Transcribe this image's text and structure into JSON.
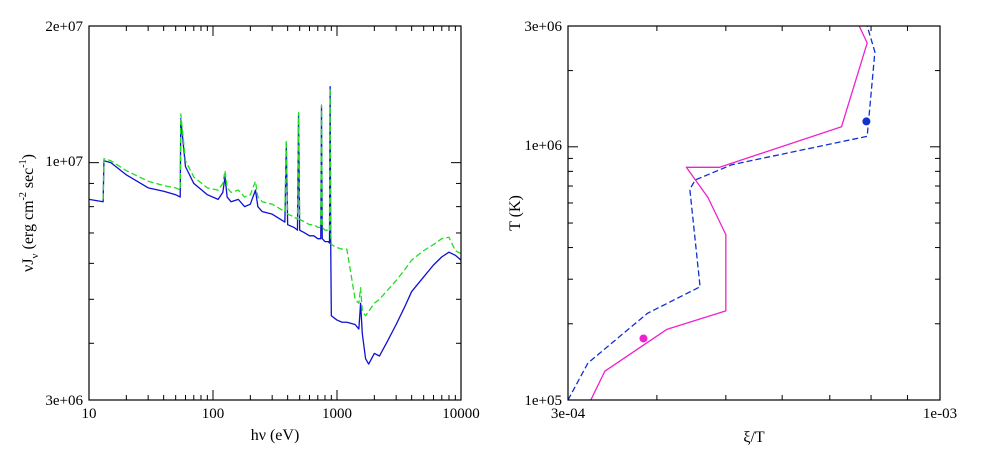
{
  "colors": {
    "solid": "#1010d0",
    "dashed": "#22dd22",
    "magenta": "#ee22cc",
    "blue_dashed": "#1030d0",
    "frame": "#000000"
  },
  "chart_data": [
    {
      "type": "line",
      "title": "",
      "xlabel": "hν (eV)",
      "ylabel_main": "νJ",
      "ylabel_sub": "ν",
      "ylabel_units": "(erg cm",
      "ylabel_exp1": "-2",
      "ylabel_mid": "sec",
      "ylabel_exp2": "-1",
      "ylabel_close": ")",
      "xscale": "log",
      "yscale": "log",
      "xlim": [
        10,
        10000
      ],
      "ylim": [
        3000000,
        20000000
      ],
      "xtick_labels": [
        "10",
        "100",
        "1000",
        "10000"
      ],
      "ytick_labels": [
        "3e+06",
        "1e+07",
        "2e+07"
      ],
      "series": [
        {
          "name": "solid",
          "style": "solid",
          "color": "#1010d0",
          "x": [
            10,
            13,
            13.2,
            15,
            20,
            30,
            40,
            50,
            54.4,
            55,
            60,
            70,
            90,
            110,
            120,
            125,
            130,
            140,
            160,
            180,
            200,
            220,
            230,
            250,
            300,
            350,
            380,
            390,
            400,
            450,
            480,
            490,
            500,
            550,
            600,
            650,
            700,
            740,
            750,
            760,
            800,
            850,
            870,
            880,
            890,
            900,
            1000,
            1100,
            1200,
            1400,
            1500,
            1550,
            1600,
            1700,
            1800,
            2000,
            2200,
            2500,
            3000,
            3500,
            4000,
            5000,
            6000,
            7000,
            8000,
            9000,
            10000
          ],
          "y": [
            8300000,
            8200000,
            10100000,
            10000000,
            9400000,
            8800000,
            8650000,
            8500000,
            8400000,
            12500000,
            9800000,
            9000000,
            8500000,
            8300000,
            8600000,
            9300000,
            8400000,
            8200000,
            8300000,
            8000000,
            8100000,
            8700000,
            8000000,
            7800000,
            7700000,
            7500000,
            7400000,
            11000000,
            7300000,
            7200000,
            7100000,
            12800000,
            7100000,
            7000000,
            6900000,
            6900000,
            6800000,
            6800000,
            13300000,
            6800000,
            6700000,
            6700000,
            6650000,
            14700000,
            6600000,
            4600000,
            4500000,
            4450000,
            4450000,
            4400000,
            4300000,
            4900000,
            4200000,
            3700000,
            3600000,
            3800000,
            3750000,
            4000000,
            4400000,
            4800000,
            5200000,
            5600000,
            5950000,
            6200000,
            6350000,
            6250000,
            6100000
          ]
        },
        {
          "name": "dashed",
          "style": "dashed",
          "color": "#22dd22",
          "x": [
            13,
            13.2,
            15,
            20,
            30,
            40,
            50,
            54.4,
            55,
            60,
            70,
            90,
            110,
            120,
            125,
            130,
            140,
            160,
            180,
            200,
            220,
            230,
            250,
            300,
            350,
            380,
            390,
            400,
            450,
            480,
            490,
            500,
            550,
            600,
            650,
            700,
            740,
            750,
            760,
            800,
            850,
            870,
            880,
            890,
            900,
            1000,
            1100,
            1200,
            1400,
            1500,
            1550,
            1600,
            1700,
            1800,
            2000,
            2200,
            2500,
            3000,
            3500,
            4000,
            5000,
            6000,
            7000,
            8000,
            9000,
            10000
          ],
          "y": [
            8300000,
            10200000,
            10100000,
            9600000,
            9100000,
            8900000,
            8800000,
            8700000,
            12800000,
            10100000,
            9300000,
            8800000,
            8700000,
            9000000,
            9600000,
            8800000,
            8600000,
            8700000,
            8400000,
            8500000,
            9100000,
            8400000,
            8200000,
            8100000,
            7900000,
            7800000,
            11200000,
            7700000,
            7600000,
            7500000,
            12900000,
            7500000,
            7400000,
            7300000,
            7300000,
            7200000,
            7200000,
            13400000,
            7200000,
            7100000,
            7100000,
            7050000,
            14600000,
            7000000,
            6600000,
            6500000,
            6450000,
            6450000,
            5000000,
            4900000,
            5300000,
            4700000,
            4600000,
            4700000,
            4900000,
            5000000,
            5200000,
            5500000,
            5800000,
            6100000,
            6400000,
            6600000,
            6800000,
            6850000,
            6400000,
            6300000
          ]
        }
      ]
    },
    {
      "type": "line",
      "title": "",
      "xlabel": "ξ/T",
      "ylabel": "T (K)",
      "xscale": "log",
      "yscale": "log",
      "xlim": [
        0.0003,
        0.001
      ],
      "ylim": [
        100000,
        3000000
      ],
      "xtick_labels": [
        "3e-04",
        "1e-03"
      ],
      "ytick_labels": [
        "1e+05",
        "1e+06",
        "3e+06"
      ],
      "series": [
        {
          "name": "magenta-solid",
          "style": "solid",
          "color": "#ee22cc",
          "x": [
            0.000323,
            0.000338,
            0.000413,
            0.0005,
            0.0005,
            0.000472,
            0.00044,
            0.00049,
            0.000727,
            0.00079,
            0.00077
          ],
          "y": [
            100000,
            130000,
            190000,
            225000,
            450000,
            630000,
            830000,
            830000,
            1200000,
            2570000,
            3000000
          ]
        },
        {
          "name": "blue-dashed",
          "style": "dashed",
          "color": "#1030d0",
          "x": [
            0.0003,
            0.00032,
            0.000388,
            0.00046,
            0.000445,
            0.000453,
            0.00051,
            0.00079,
            0.00081,
            0.00079
          ],
          "y": [
            100000,
            140000,
            220000,
            280000,
            680000,
            740000,
            850000,
            1100000,
            2370000,
            3000000
          ]
        }
      ],
      "markers": [
        {
          "series": "magenta-solid",
          "x": 0.000383,
          "y": 175000,
          "color": "#ee22cc"
        },
        {
          "series": "blue-dashed",
          "x": 0.000788,
          "y": 1260000,
          "color": "#1030d0"
        }
      ]
    }
  ]
}
